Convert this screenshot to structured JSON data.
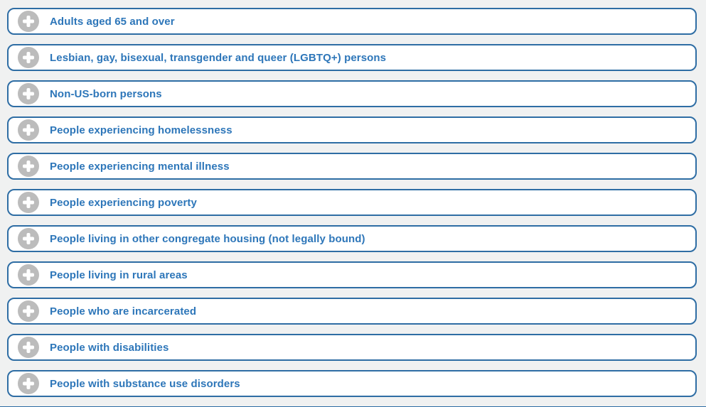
{
  "theme": {
    "background_color": "#f0f1f1",
    "panel_background": "#ffffff",
    "border_color": "#2e6da4",
    "label_color": "#2d76b9",
    "icon_circle_color": "#bcbcbc",
    "icon_glyph_color": "#ffffff"
  },
  "accordion": {
    "expand_icon": "plus",
    "items": [
      {
        "label": "Adults aged 65 and over"
      },
      {
        "label": "Lesbian, gay, bisexual, transgender and queer (LGBTQ+) persons"
      },
      {
        "label": "Non-US-born persons"
      },
      {
        "label": "People experiencing homelessness"
      },
      {
        "label": "People experiencing mental illness"
      },
      {
        "label": "People experiencing poverty"
      },
      {
        "label": "People living in other congregate housing (not legally bound)"
      },
      {
        "label": "People living in rural areas"
      },
      {
        "label": "People who are incarcerated"
      },
      {
        "label": "People with disabilities"
      },
      {
        "label": "People with substance use disorders"
      }
    ]
  }
}
